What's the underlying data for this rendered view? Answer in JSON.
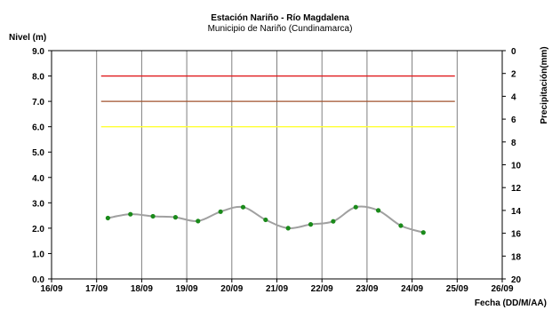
{
  "chart_data": {
    "type": "line",
    "title": "Estación Nariño  - Río Magdalena",
    "subtitle": "Municipio de Nariño (Cundinamarca)",
    "ylabel": "Nivel (m)",
    "y2label": "Precipitación(mm)",
    "xlabel": "Fecha (DD/M/AA)",
    "xlim": [
      "16/09",
      "26/09"
    ],
    "x_tick_labels": [
      "16/09",
      "17/09",
      "18/09",
      "19/09",
      "20/09",
      "21/09",
      "22/09",
      "23/09",
      "24/09",
      "25/09",
      "26/09"
    ],
    "ylim": [
      0,
      9
    ],
    "y_tick_labels": [
      "0.0",
      "1.0",
      "2.0",
      "3.0",
      "4.0",
      "5.0",
      "6.0",
      "7.0",
      "8.0",
      "9.0"
    ],
    "y2lim": [
      0,
      20
    ],
    "y2_inverted": true,
    "y2_tick_labels": [
      "0",
      "2",
      "4",
      "6",
      "8",
      "10",
      "12",
      "14",
      "16",
      "18",
      "20"
    ],
    "grid": "vertical",
    "threshold_lines": [
      {
        "value": 8.0,
        "color": "#e0191c"
      },
      {
        "value": 7.0,
        "color": "#a0522d"
      },
      {
        "value": 6.0,
        "color": "#ffff33"
      }
    ],
    "series": [
      {
        "x": [
          "17/09 06:00",
          "17/09 18:00",
          "18/09 06:00",
          "18/09 18:00",
          "19/09 06:00",
          "19/09 18:00",
          "20/09 06:00",
          "20/09 18:00",
          "21/09 06:00",
          "21/09 18:00",
          "22/09 06:00",
          "22/09 18:00",
          "23/09 06:00",
          "23/09 18:00",
          "24/09 06:00"
        ],
        "values": [
          2.4,
          2.55,
          2.47,
          2.43,
          2.28,
          2.65,
          2.83,
          2.33,
          2.0,
          2.15,
          2.27,
          2.83,
          2.7,
          2.1,
          1.83
        ],
        "line_color": "#a0a0a0",
        "marker_color": "#1a8a1a"
      }
    ]
  }
}
